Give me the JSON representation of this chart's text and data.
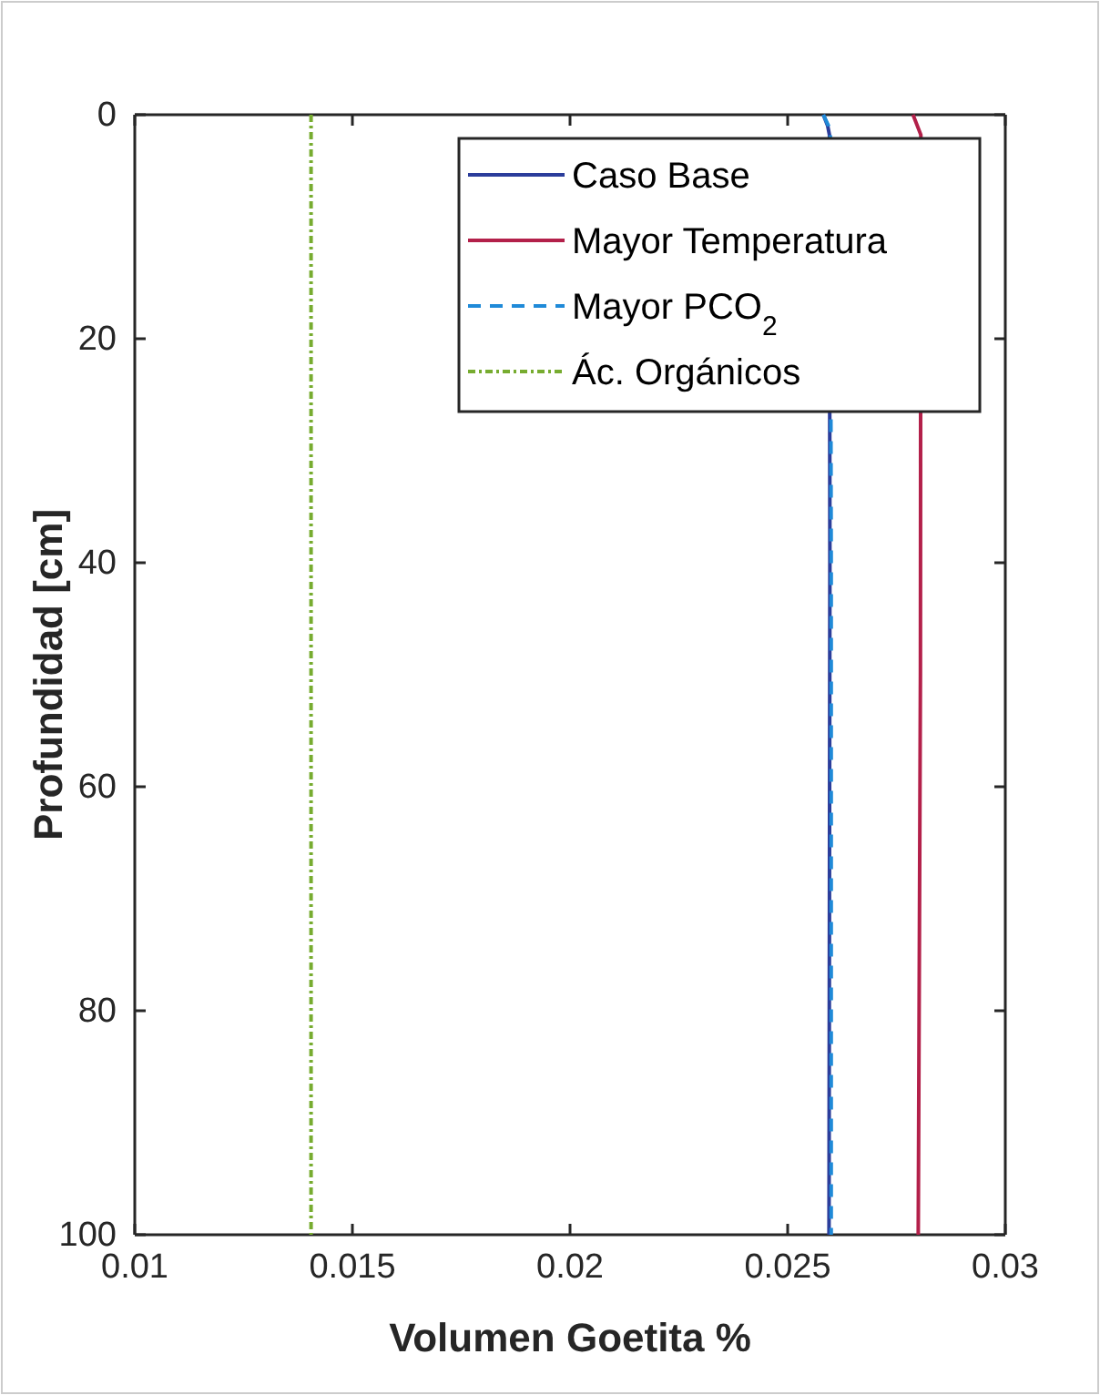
{
  "chart_data": {
    "type": "line",
    "xlabel": "Volumen Goetita %",
    "ylabel": "Profundidad [cm]",
    "xlim": [
      0.01,
      0.03
    ],
    "xticks": [
      0.01,
      0.015,
      0.02,
      0.025,
      0.03
    ],
    "ylim": [
      100,
      0
    ],
    "yticks": [
      0,
      20,
      40,
      60,
      80,
      100
    ],
    "grid": false,
    "legend": "top right",
    "marker": "none",
    "series": [
      {
        "name": "Caso Base",
        "color": "#2b3d9b",
        "line_style": "solid",
        "x": [
          0.02582,
          0.02592,
          0.02596,
          0.02597,
          0.02595
        ],
        "values": [
          0,
          1,
          1.8,
          40,
          100
        ]
      },
      {
        "name": "Mayor Temperatura",
        "color": "#b3204a",
        "line_style": "solid",
        "x": [
          0.02788,
          0.02806,
          0.02805,
          0.028
        ],
        "values": [
          0,
          1.8,
          50,
          100
        ]
      },
      {
        "name": "Mayor PCO$_{2}$",
        "color": "#1f8ad8",
        "line_style": "dashed",
        "x": [
          0.02582,
          0.02594,
          0.02598,
          0.026,
          0.026
        ],
        "values": [
          0,
          1,
          1.8,
          40,
          100
        ]
      },
      {
        "name": "Ác. Orgánicos",
        "color": "#77ac30",
        "line_style": "dotted",
        "x": [
          0.01405,
          0.01405
        ],
        "values": [
          0,
          100
        ]
      }
    ]
  }
}
